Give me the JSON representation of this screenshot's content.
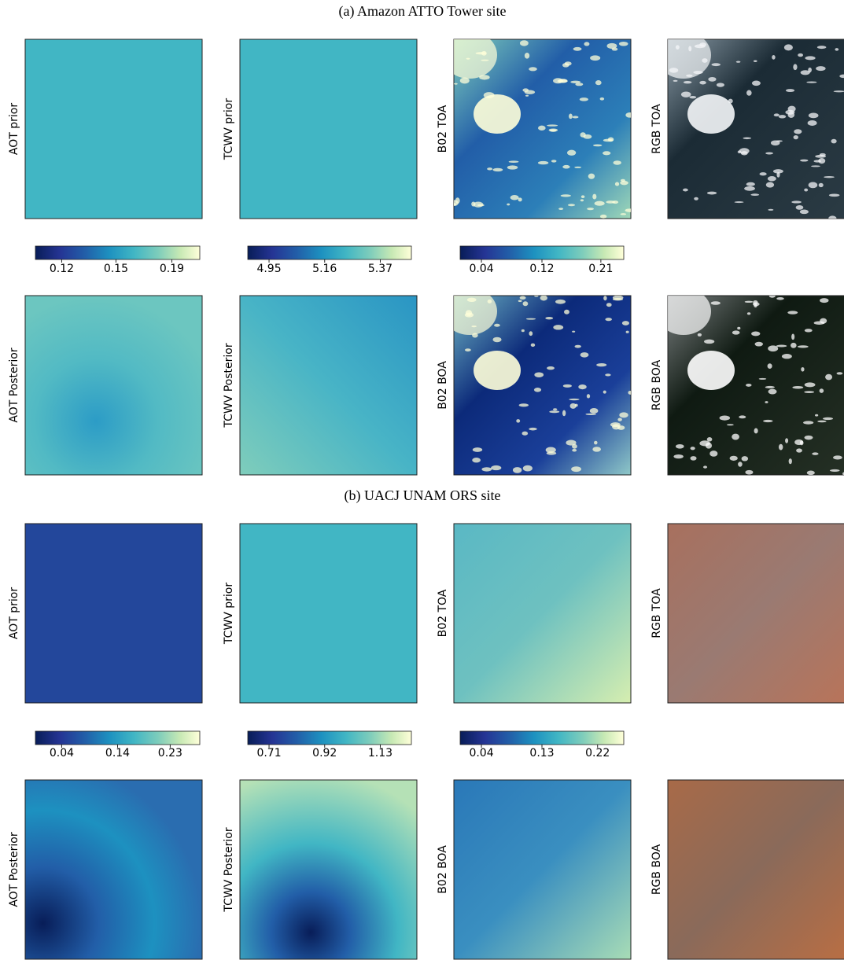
{
  "sections": [
    {
      "title": "(a) Amazon ATTO Tower site",
      "rows": [
        [
          "AOT prior",
          "TCWV prior",
          "B02 TOA",
          "RGB TOA"
        ],
        [
          "AOT Posterior",
          "TCWV Posterior",
          "B02 BOA",
          "RGB BOA"
        ]
      ],
      "colorbars": [
        [
          0.12,
          0.15,
          0.19
        ],
        [
          4.95,
          5.16,
          5.37
        ],
        [
          0.04,
          0.12,
          0.21
        ]
      ]
    },
    {
      "title": "(b) UACJ UNAM ORS site",
      "rows": [
        [
          "AOT prior",
          "TCWV prior",
          "B02 TOA",
          "RGB TOA"
        ],
        [
          "AOT Posterior",
          "TCWV Posterior",
          "B02 BOA",
          "RGB BOA"
        ]
      ],
      "colorbars": [
        [
          0.04,
          0.14,
          0.23
        ],
        [
          0.71,
          0.92,
          1.13
        ],
        [
          0.04,
          0.13,
          0.22
        ]
      ]
    }
  ]
}
